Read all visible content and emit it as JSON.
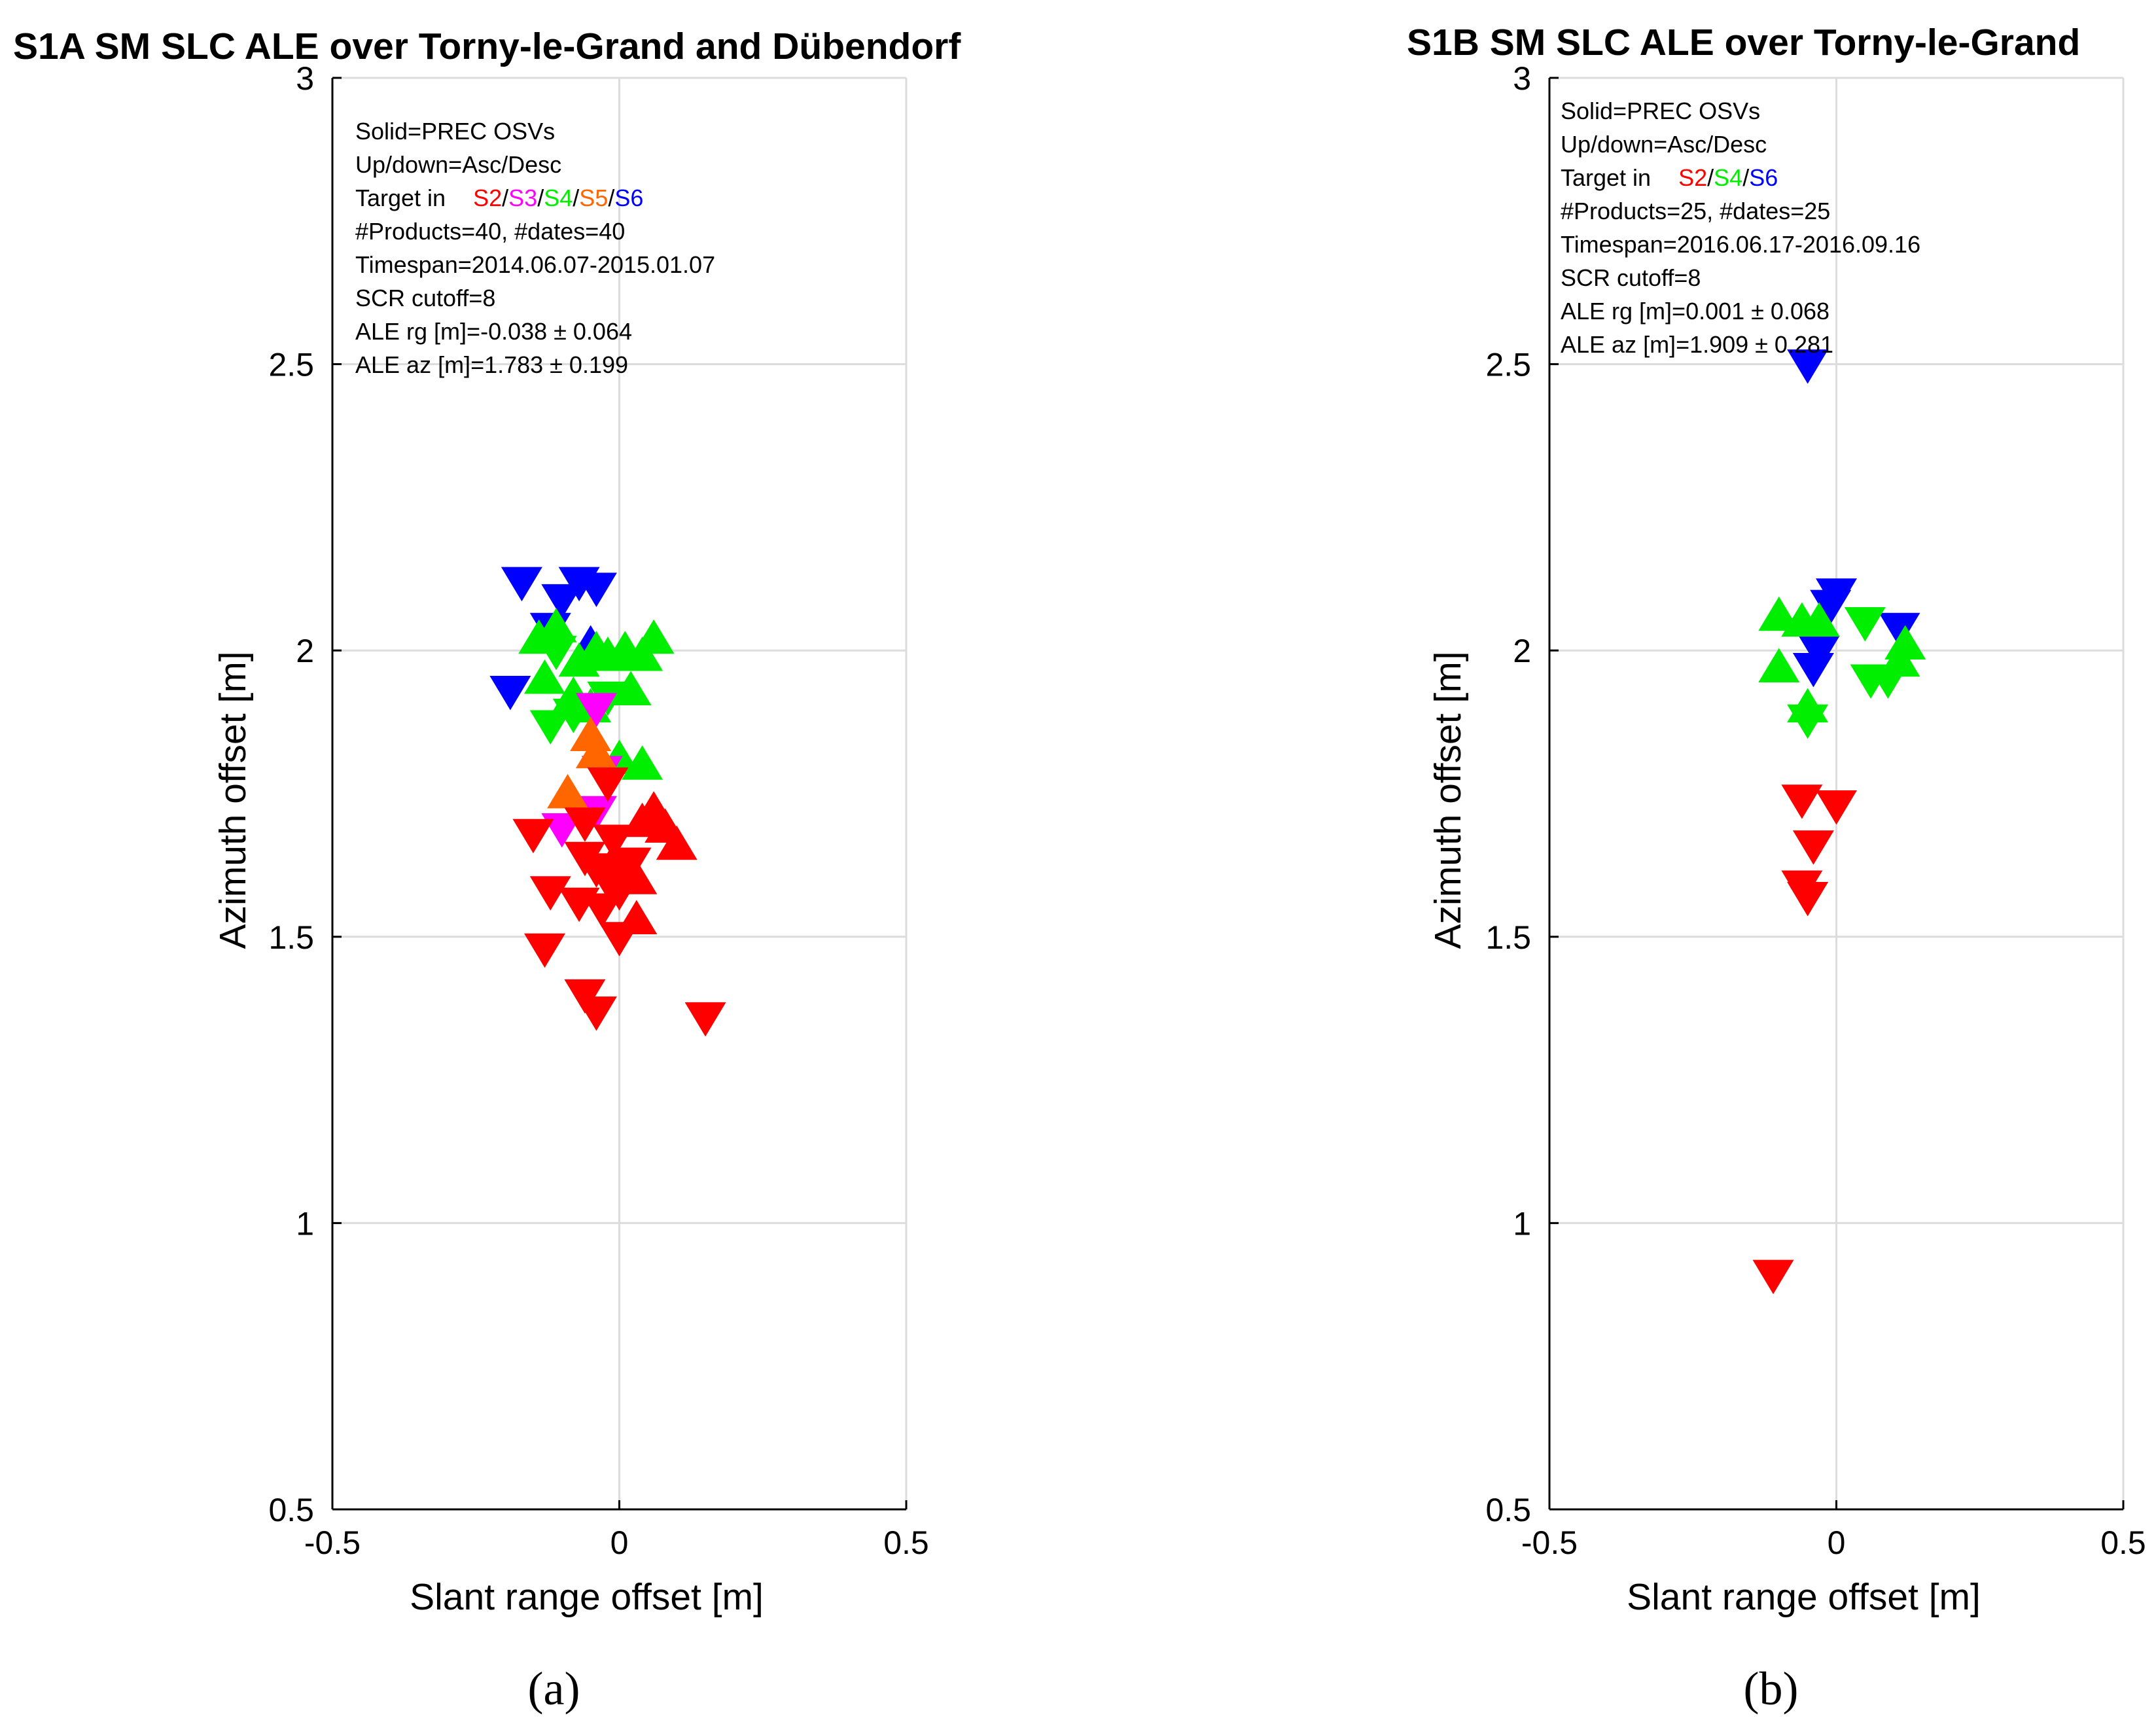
{
  "chart_data": [
    {
      "type": "scatter",
      "title": "S1A SM SLC ALE over Torny-le-Grand and Dübendorf",
      "xlabel": "Slant range offset [m]",
      "ylabel": "Azimuth offset [m]",
      "xlim": [
        -0.5,
        0.5
      ],
      "ylim": [
        0.5,
        3
      ],
      "xticks": [
        "-0.5",
        "0",
        "0.5"
      ],
      "yticks": [
        "0.5",
        "1",
        "1.5",
        "2",
        "2.5",
        "3"
      ],
      "xtick_values": [
        -0.5,
        0,
        0.5
      ],
      "ytick_values": [
        0.5,
        1,
        1.5,
        2,
        2.5,
        3
      ],
      "grid": true,
      "panel_label": "(a)",
      "annotation": {
        "lines": [
          "Solid=PREC OSVs",
          "Up/down=Asc/Desc",
          "#Products=40, #dates=40",
          "Timespan=2014.06.07-2015.01.07",
          "SCR cutoff=8",
          "ALE rg [m]=-0.038 ± 0.064",
          "ALE az [m]=1.783 ± 0.199"
        ],
        "target_prefix": "Target in",
        "targets": [
          {
            "label": "S2",
            "color": "#ff0000"
          },
          {
            "label": "S3",
            "color": "#ff00ff"
          },
          {
            "label": "S4",
            "color": "#00ee00"
          },
          {
            "label": "S5",
            "color": "#ff6600"
          },
          {
            "label": "S6",
            "color": "#0000ff"
          }
        ],
        "separator": "/"
      },
      "series": [
        {
          "name": "S6",
          "color": "#0000ff",
          "points": [
            {
              "x": -0.17,
              "y": 2.12,
              "dir": "down"
            },
            {
              "x": -0.1,
              "y": 2.09,
              "dir": "down"
            },
            {
              "x": -0.07,
              "y": 2.12,
              "dir": "down"
            },
            {
              "x": -0.04,
              "y": 2.11,
              "dir": "down"
            },
            {
              "x": -0.19,
              "y": 1.93,
              "dir": "down"
            },
            {
              "x": -0.12,
              "y": 2.04,
              "dir": "down"
            },
            {
              "x": -0.05,
              "y": 2.01,
              "dir": "up"
            }
          ]
        },
        {
          "name": "S4",
          "color": "#00ee00",
          "points": [
            {
              "x": -0.14,
              "y": 2.02,
              "dir": "up"
            },
            {
              "x": -0.11,
              "y": 2.04,
              "dir": "up"
            },
            {
              "x": -0.07,
              "y": 1.98,
              "dir": "up"
            },
            {
              "x": -0.04,
              "y": 2.0,
              "dir": "up"
            },
            {
              "x": -0.02,
              "y": 1.99,
              "dir": "up"
            },
            {
              "x": 0.01,
              "y": 2.0,
              "dir": "up"
            },
            {
              "x": 0.04,
              "y": 1.99,
              "dir": "up"
            },
            {
              "x": 0.06,
              "y": 2.02,
              "dir": "up"
            },
            {
              "x": -0.13,
              "y": 1.95,
              "dir": "up"
            },
            {
              "x": -0.08,
              "y": 1.92,
              "dir": "up"
            },
            {
              "x": -0.05,
              "y": 1.9,
              "dir": "up"
            },
            {
              "x": 0.02,
              "y": 1.93,
              "dir": "up"
            },
            {
              "x": -0.11,
              "y": 2.0,
              "dir": "down"
            },
            {
              "x": -0.12,
              "y": 1.87,
              "dir": "down"
            },
            {
              "x": -0.08,
              "y": 1.89,
              "dir": "down"
            },
            {
              "x": -0.02,
              "y": 1.92,
              "dir": "down"
            },
            {
              "x": 0.0,
              "y": 1.81,
              "dir": "up"
            },
            {
              "x": 0.04,
              "y": 1.8,
              "dir": "up"
            }
          ]
        },
        {
          "name": "S3",
          "color": "#ff00ff",
          "points": [
            {
              "x": -0.04,
              "y": 1.9,
              "dir": "down"
            },
            {
              "x": -0.03,
              "y": 1.79,
              "dir": "down"
            },
            {
              "x": -0.1,
              "y": 1.69,
              "dir": "down"
            },
            {
              "x": -0.04,
              "y": 1.72,
              "dir": "down"
            }
          ]
        },
        {
          "name": "S5",
          "color": "#ff6600",
          "points": [
            {
              "x": -0.05,
              "y": 1.85,
              "dir": "up"
            },
            {
              "x": -0.04,
              "y": 1.82,
              "dir": "up"
            },
            {
              "x": -0.09,
              "y": 1.75,
              "dir": "up"
            }
          ]
        },
        {
          "name": "S2",
          "color": "#ff0000",
          "points": [
            {
              "x": -0.15,
              "y": 1.68,
              "dir": "down"
            },
            {
              "x": -0.12,
              "y": 1.58,
              "dir": "down"
            },
            {
              "x": -0.13,
              "y": 1.48,
              "dir": "down"
            },
            {
              "x": -0.07,
              "y": 1.56,
              "dir": "down"
            },
            {
              "x": -0.06,
              "y": 1.64,
              "dir": "down"
            },
            {
              "x": -0.04,
              "y": 1.62,
              "dir": "down"
            },
            {
              "x": -0.02,
              "y": 1.6,
              "dir": "down"
            },
            {
              "x": -0.03,
              "y": 1.55,
              "dir": "down"
            },
            {
              "x": 0.0,
              "y": 1.58,
              "dir": "down"
            },
            {
              "x": -0.01,
              "y": 1.63,
              "dir": "up"
            },
            {
              "x": 0.03,
              "y": 1.6,
              "dir": "up"
            },
            {
              "x": 0.03,
              "y": 1.53,
              "dir": "up"
            },
            {
              "x": 0.0,
              "y": 1.5,
              "dir": "down"
            },
            {
              "x": -0.06,
              "y": 1.4,
              "dir": "down"
            },
            {
              "x": -0.04,
              "y": 1.37,
              "dir": "down"
            },
            {
              "x": 0.15,
              "y": 1.36,
              "dir": "down"
            },
            {
              "x": 0.06,
              "y": 1.72,
              "dir": "up"
            },
            {
              "x": 0.08,
              "y": 1.69,
              "dir": "up"
            },
            {
              "x": 0.1,
              "y": 1.66,
              "dir": "up"
            },
            {
              "x": -0.02,
              "y": 1.77,
              "dir": "down"
            },
            {
              "x": -0.06,
              "y": 1.7,
              "dir": "down"
            },
            {
              "x": 0.02,
              "y": 1.63,
              "dir": "down"
            },
            {
              "x": 0.04,
              "y": 1.7,
              "dir": "up"
            },
            {
              "x": -0.01,
              "y": 1.67,
              "dir": "down"
            }
          ]
        }
      ]
    },
    {
      "type": "scatter",
      "title": "S1B SM SLC ALE over Torny-le-Grand",
      "xlabel": "Slant range offset [m]",
      "ylabel": "Azimuth offset [m]",
      "xlim": [
        -0.5,
        0.5
      ],
      "ylim": [
        0.5,
        3
      ],
      "xticks": [
        "-0.5",
        "0",
        "0.5"
      ],
      "yticks": [
        "0.5",
        "1",
        "1.5",
        "2",
        "2.5",
        "3"
      ],
      "xtick_values": [
        -0.5,
        0,
        0.5
      ],
      "ytick_values": [
        0.5,
        1,
        1.5,
        2,
        2.5,
        3
      ],
      "grid": true,
      "panel_label": "(b)",
      "annotation": {
        "lines": [
          "Solid=PREC OSVs",
          "Up/down=Asc/Desc",
          "#Products=25, #dates=25",
          "Timespan=2016.06.17-2016.09.16",
          "SCR cutoff=8",
          "ALE rg [m]=0.001 ± 0.068",
          "ALE az [m]=1.909 ± 0.281"
        ],
        "target_prefix": "Target in",
        "targets": [
          {
            "label": "S2",
            "color": "#ff0000"
          },
          {
            "label": "S4",
            "color": "#00ee00"
          },
          {
            "label": "S6",
            "color": "#0000ff"
          }
        ],
        "separator": "/"
      },
      "series": [
        {
          "name": "S6",
          "color": "#0000ff",
          "points": [
            {
              "x": -0.05,
              "y": 2.5,
              "dir": "down"
            },
            {
              "x": 0.0,
              "y": 2.1,
              "dir": "down"
            },
            {
              "x": -0.01,
              "y": 2.08,
              "dir": "down"
            },
            {
              "x": 0.11,
              "y": 2.04,
              "dir": "down"
            },
            {
              "x": -0.03,
              "y": 2.0,
              "dir": "down"
            },
            {
              "x": -0.04,
              "y": 1.97,
              "dir": "down"
            }
          ]
        },
        {
          "name": "S4",
          "color": "#00ee00",
          "points": [
            {
              "x": -0.1,
              "y": 2.06,
              "dir": "up"
            },
            {
              "x": -0.06,
              "y": 2.05,
              "dir": "up"
            },
            {
              "x": -0.03,
              "y": 2.05,
              "dir": "up"
            },
            {
              "x": 0.05,
              "y": 2.05,
              "dir": "down"
            },
            {
              "x": -0.1,
              "y": 1.97,
              "dir": "up"
            },
            {
              "x": -0.05,
              "y": 1.9,
              "dir": "up"
            },
            {
              "x": -0.05,
              "y": 1.88,
              "dir": "down"
            },
            {
              "x": 0.06,
              "y": 1.95,
              "dir": "down"
            },
            {
              "x": 0.09,
              "y": 1.95,
              "dir": "down"
            },
            {
              "x": 0.11,
              "y": 1.98,
              "dir": "up"
            },
            {
              "x": 0.12,
              "y": 2.01,
              "dir": "up"
            }
          ]
        },
        {
          "name": "S2",
          "color": "#ff0000",
          "points": [
            {
              "x": -0.06,
              "y": 1.74,
              "dir": "down"
            },
            {
              "x": 0.0,
              "y": 1.73,
              "dir": "down"
            },
            {
              "x": -0.04,
              "y": 1.66,
              "dir": "down"
            },
            {
              "x": -0.06,
              "y": 1.59,
              "dir": "down"
            },
            {
              "x": -0.05,
              "y": 1.57,
              "dir": "down"
            },
            {
              "x": -0.11,
              "y": 0.91,
              "dir": "down"
            }
          ]
        }
      ]
    }
  ]
}
